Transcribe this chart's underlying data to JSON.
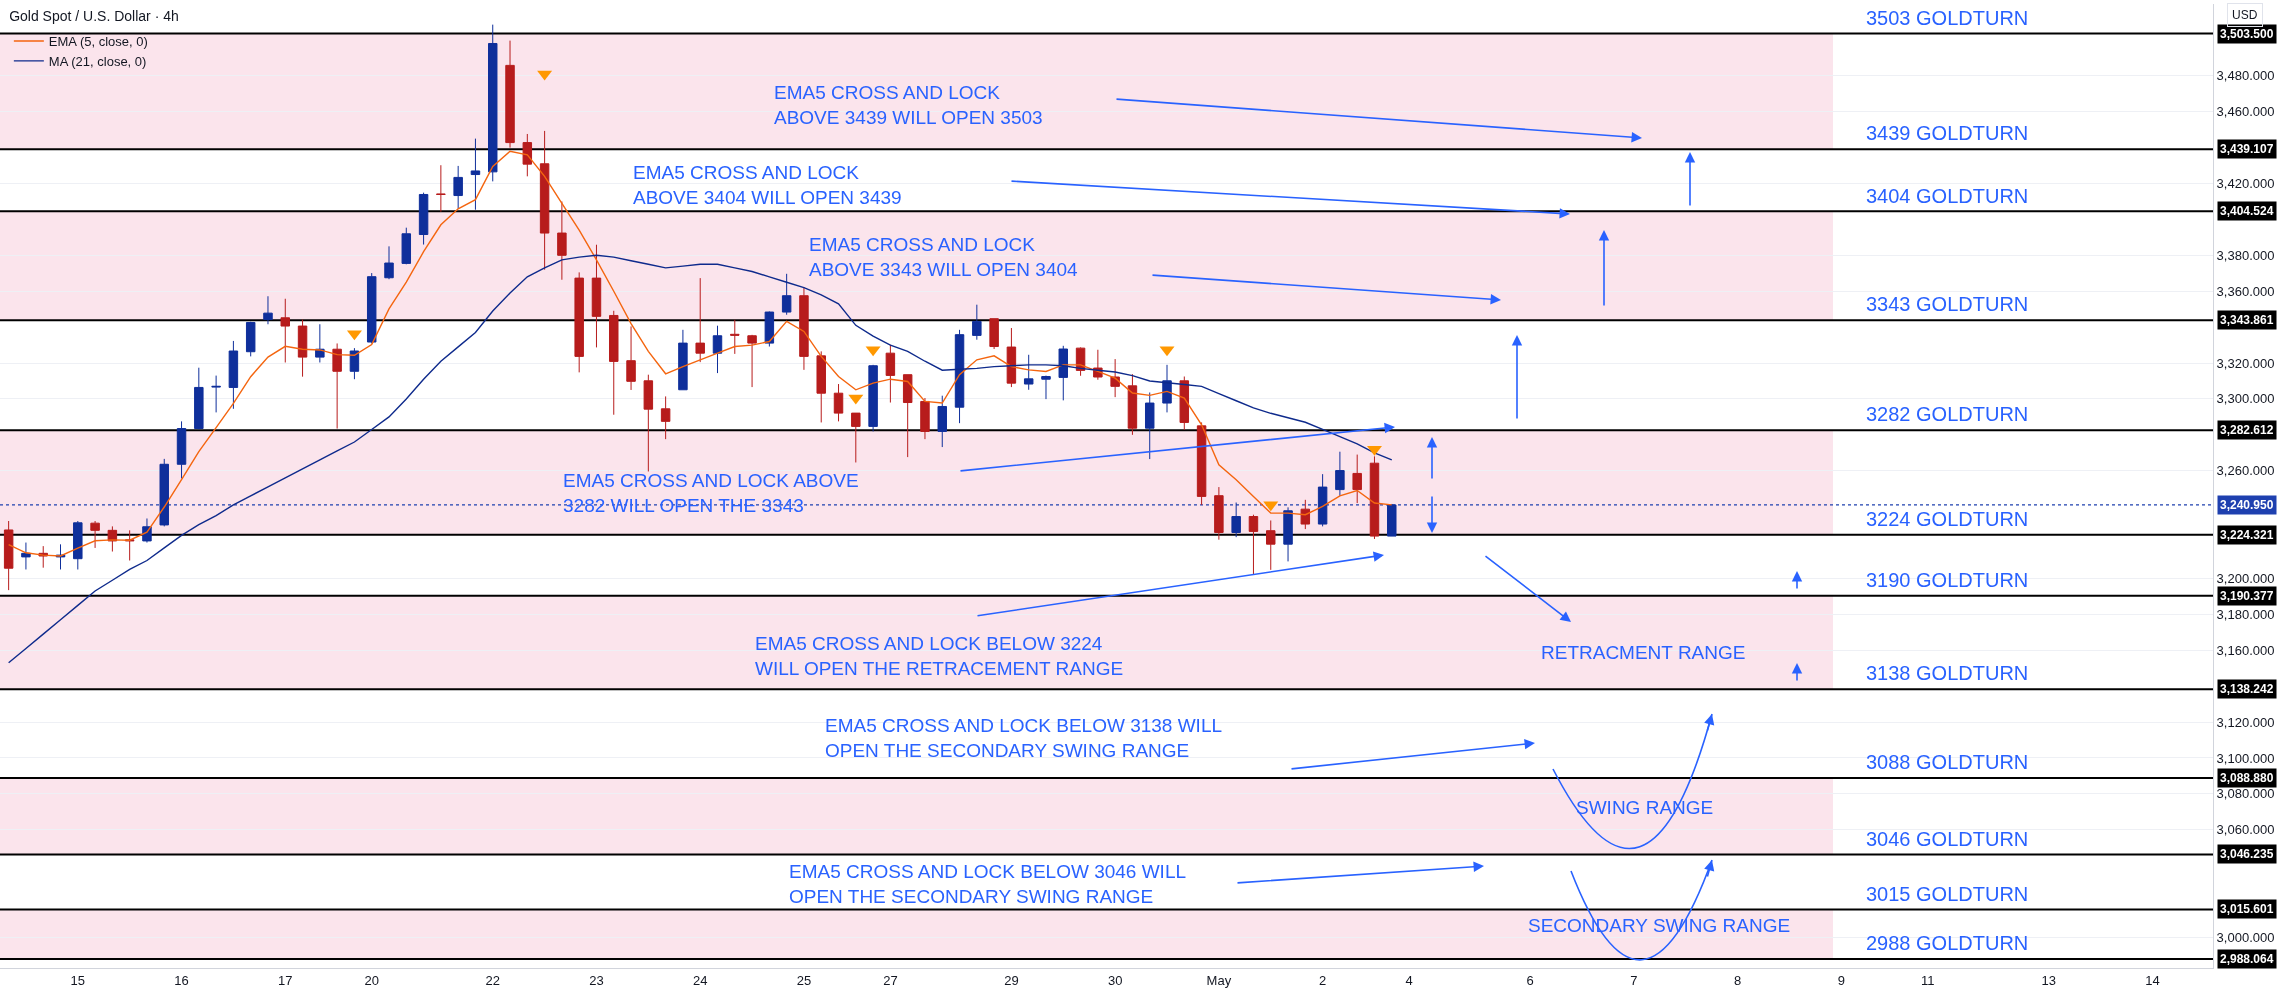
{
  "chart_data": {
    "type": "candlestick",
    "title": "Gold Spot / U.S. Dollar · 4h",
    "categories": [
      null,
      null,
      null,
      null,
      "15",
      null,
      null,
      null,
      null,
      null,
      "16",
      null,
      null,
      null,
      null,
      null,
      "17",
      null,
      null,
      null,
      null,
      "20",
      null,
      null,
      null,
      null,
      null,
      null,
      "22",
      null,
      null,
      null,
      null,
      null,
      "23",
      null,
      null,
      null,
      null,
      null,
      "24",
      null,
      null,
      null,
      null,
      null,
      "25",
      null,
      null,
      null,
      null,
      "27",
      null,
      null,
      null,
      null,
      null,
      null,
      "29",
      null,
      null,
      null,
      null,
      null,
      "30",
      null,
      null,
      null,
      null,
      null,
      "May",
      null,
      null,
      null,
      null,
      null,
      "2",
      null,
      null,
      null,
      null,
      "4",
      null,
      null,
      null,
      null,
      null,
      null,
      "6",
      null,
      null,
      null,
      null,
      null,
      "7",
      null,
      null,
      null,
      null,
      null,
      "8",
      null,
      null,
      null,
      null,
      null,
      "9",
      null,
      null,
      null,
      null,
      "11",
      null,
      null,
      null,
      null,
      null,
      null,
      "13",
      null,
      null,
      null,
      null,
      null,
      "14",
      null,
      null,
      null
    ],
    "ohlc": [
      [
        3227,
        3232,
        3193.5,
        3205.7
      ],
      [
        3212,
        3220,
        3205,
        3214
      ],
      [
        3214,
        3218,
        3206,
        3212.5
      ],
      [
        3212,
        3219,
        3205,
        3213
      ],
      [
        3211,
        3232,
        3205,
        3231
      ],
      [
        3230.8,
        3232,
        3217,
        3226.8
      ],
      [
        3226.8,
        3229,
        3215,
        3220.9
      ],
      [
        3221.5,
        3226.8,
        3210,
        3221
      ],
      [
        3220.9,
        3233.4,
        3220,
        3228.8
      ],
      [
        3229.8,
        3266.6,
        3229,
        3263.6
      ],
      [
        3263.6,
        3287.5,
        3255.7,
        3283.5
      ],
      [
        3283.5,
        3317.4,
        3283,
        3306.4
      ],
      [
        3306.6,
        3313,
        3292.5,
        3307
      ],
      [
        3306.4,
        3332.3,
        3294.5,
        3326.7
      ],
      [
        3326.3,
        3343,
        3323.7,
        3342.6
      ],
      [
        3344.2,
        3357.2,
        3341.6,
        3347.8
      ],
      [
        3345.2,
        3355.8,
        3320.3,
        3340.6
      ],
      [
        3340.6,
        3344.2,
        3312.4,
        3323.3
      ],
      [
        3323.3,
        3341.6,
        3320.3,
        3327.7
      ],
      [
        3327.7,
        3330.9,
        3283.5,
        3315.4
      ],
      [
        3315.4,
        3328.3,
        3311,
        3326.7
      ],
      [
        3331.7,
        3370.1,
        3330.9,
        3368.1
      ],
      [
        3367.5,
        3385,
        3366.7,
        3375.7
      ],
      [
        3375.5,
        3395.4,
        3375,
        3392
      ],
      [
        3391.6,
        3414.9,
        3386,
        3413.9
      ],
      [
        3414.2,
        3430.2,
        3404.3,
        3413.9
      ],
      [
        3413.3,
        3429.8,
        3405.9,
        3423.4
      ],
      [
        3425,
        3445,
        3405.4,
        3427
      ],
      [
        3426.5,
        3508.5,
        3421.2,
        3498
      ],
      [
        3485.8,
        3499.6,
        3440,
        3442.8
      ],
      [
        3442.8,
        3447.6,
        3424,
        3430.8
      ],
      [
        3431,
        3449.3,
        3372,
        3392.4
      ],
      [
        3392.4,
        3410,
        3366.4,
        3380
      ],
      [
        3367.3,
        3370.5,
        3314.8,
        3323.7
      ],
      [
        3367.3,
        3385.9,
        3328.7,
        3346
      ],
      [
        3346.5,
        3349.1,
        3291.2,
        3320.9
      ],
      [
        3321.3,
        3340.4,
        3305,
        3309.8
      ],
      [
        3310.1,
        3313.5,
        3259.6,
        3294.3
      ],
      [
        3294.5,
        3301.4,
        3277.6,
        3287.5
      ],
      [
        3305.1,
        3338.5,
        3305.1,
        3331.1
      ],
      [
        3331.1,
        3367.3,
        3320.5,
        3325.5
      ],
      [
        3325.5,
        3340.8,
        3314.4,
        3335.2
      ],
      [
        3336,
        3344.1,
        3325.1,
        3335.5
      ],
      [
        3335.2,
        3335.7,
        3306.6,
        3331.1
      ],
      [
        3331.1,
        3348.7,
        3329.2,
        3348.4
      ],
      [
        3348.4,
        3369.7,
        3346.9,
        3357.5
      ],
      [
        3357.5,
        3362.3,
        3316.2,
        3323.7
      ],
      [
        3324,
        3326.5,
        3286.9,
        3303.2
      ],
      [
        3303.2,
        3308.3,
        3287.5,
        3292.1
      ],
      [
        3292.1,
        3292.1,
        3264.6,
        3284.7
      ],
      [
        3284.7,
        3319,
        3281.9,
        3318.5
      ],
      [
        3325.5,
        3330.2,
        3298,
        3313.1
      ],
      [
        3313.5,
        3313.5,
        3267.6,
        3298
      ],
      [
        3298.6,
        3300.5,
        3277.6,
        3281.9
      ],
      [
        3281.9,
        3301.8,
        3273.2,
        3295.8
      ],
      [
        3295.4,
        3338.5,
        3286.5,
        3335.8
      ],
      [
        3335.4,
        3352.5,
        3333,
        3343.2
      ],
      [
        3344.7,
        3344.7,
        3327.8,
        3329.2
      ],
      [
        3328.9,
        3339.5,
        3306.6,
        3308.8
      ],
      [
        3308.3,
        3324.6,
        3305.1,
        3311.2
      ],
      [
        3311,
        3313,
        3299.9,
        3312.5
      ],
      [
        3312,
        3329.6,
        3299.2,
        3327.8
      ],
      [
        3328.3,
        3328.7,
        3312.9,
        3315.9
      ],
      [
        3317.2,
        3327.4,
        3310.7,
        3312.2
      ],
      [
        3312.2,
        3322.2,
        3301,
        3307
      ],
      [
        3307.3,
        3313.8,
        3280,
        3283.7
      ],
      [
        3283.7,
        3303.6,
        3266.5,
        3297.7
      ],
      [
        3297.7,
        3319,
        3292.5,
        3310.1
      ],
      [
        3310.1,
        3312.5,
        3282.8,
        3286.9
      ],
      [
        3285,
        3286.9,
        3241,
        3245.7
      ],
      [
        3246.1,
        3250.9,
        3221.6,
        3225.6
      ],
      [
        3225.6,
        3242.3,
        3223,
        3234.5
      ],
      [
        3234.5,
        3235.5,
        3202,
        3226.2
      ],
      [
        3226.6,
        3232.3,
        3204.8,
        3219.1
      ],
      [
        3219.1,
        3239.6,
        3209.5,
        3237.7
      ],
      [
        3238.6,
        3243.8,
        3227.5,
        3230.3
      ],
      [
        3230.3,
        3258.1,
        3229,
        3250.9
      ],
      [
        3249.5,
        3270.6,
        3246,
        3260.1
      ],
      [
        3258.5,
        3269,
        3242,
        3249.5
      ],
      [
        3264.2,
        3268,
        3222,
        3223.6
      ],
      [
        3223.6,
        3241.5,
        3223.6,
        3240.95
      ],
      null,
      null,
      null,
      null,
      null,
      null,
      null,
      null,
      null,
      null,
      null,
      null,
      null,
      null,
      null,
      null,
      null,
      null,
      null,
      null,
      null,
      null,
      null,
      null,
      null,
      null,
      null,
      null,
      null,
      null,
      null,
      null,
      null,
      null,
      null,
      null,
      null,
      null,
      null,
      null,
      null,
      null,
      null,
      null,
      null,
      null,
      null
    ],
    "colors": [
      "#b71c1c",
      "#0f2f9b",
      "#b71c1c",
      "#0f2f9b",
      "#0f2f9b",
      "#b71c1c",
      "#b71c1c",
      "#b71c1c",
      "#0f2f9b",
      "#0f2f9b",
      "#0f2f9b",
      "#0f2f9b",
      "#0f2f9b",
      "#0f2f9b",
      "#0f2f9b",
      "#0f2f9b",
      "#b71c1c",
      "#b71c1c",
      "#0f2f9b",
      "#b71c1c",
      "#0f2f9b",
      "#0f2f9b",
      "#0f2f9b",
      "#0f2f9b",
      "#0f2f9b",
      "#b71c1c",
      "#0f2f9b",
      "#0f2f9b",
      "#0f2f9b",
      "#b71c1c",
      "#b71c1c",
      "#b71c1c",
      "#b71c1c",
      "#b71c1c",
      "#b71c1c",
      "#b71c1c",
      "#b71c1c",
      "#b71c1c",
      "#b71c1c",
      "#0f2f9b",
      "#b71c1c",
      "#0f2f9b",
      "#b71c1c",
      "#b71c1c",
      "#0f2f9b",
      "#0f2f9b",
      "#b71c1c",
      "#b71c1c",
      "#b71c1c",
      "#b71c1c",
      "#0f2f9b",
      "#b71c1c",
      "#b71c1c",
      "#b71c1c",
      "#0f2f9b",
      "#0f2f9b",
      "#0f2f9b",
      "#b71c1c",
      "#b71c1c",
      "#0f2f9b",
      "#0f2f9b",
      "#0f2f9b",
      "#b71c1c",
      "#b71c1c",
      "#b71c1c",
      "#b71c1c",
      "#0f2f9b",
      "#0f2f9b",
      "#b71c1c",
      "#b71c1c",
      "#b71c1c",
      "#0f2f9b",
      "#b71c1c",
      "#b71c1c",
      "#0f2f9b",
      "#b71c1c",
      "#0f2f9b",
      "#0f2f9b",
      "#b71c1c",
      "#b71c1c",
      "#0f2f9b",
      null,
      null,
      null,
      null,
      null,
      null,
      null,
      null,
      null,
      null,
      null,
      null,
      null,
      null,
      null,
      null,
      null,
      null,
      null,
      null,
      null,
      null,
      null,
      null,
      null,
      null,
      null,
      null,
      null,
      null,
      null,
      null,
      null,
      null,
      null,
      null,
      null,
      null,
      null,
      null,
      null,
      null,
      null,
      null,
      null,
      null,
      null
    ],
    "series": [
      {
        "name": "EMA (5, close, 0)",
        "type": "line",
        "color": "#f4650f",
        "values": [
          3218.9,
          3214.3,
          3213,
          3212.5,
          3216.9,
          3221,
          3221.5,
          3221.3,
          3225.8,
          3239.8,
          3255,
          3270.6,
          3284,
          3297.5,
          3312.4,
          3323.3,
          3329.3,
          3327.7,
          3327.3,
          3324.7,
          3324.3,
          3330.3,
          3350.2,
          3365.1,
          3382,
          3397,
          3405.9,
          3411,
          3429.5,
          3438,
          3436,
          3424,
          3409,
          3394,
          3377.5,
          3360,
          3342,
          3326.5,
          3314,
          3318,
          3321.8,
          3325.5,
          3329.2,
          3330,
          3332,
          3343.2,
          3337.6,
          3323.7,
          3312.5,
          3305.1,
          3308.8,
          3311,
          3309.7,
          3298.6,
          3297.7,
          3313.5,
          3321.8,
          3324,
          3318,
          3316.2,
          3315.3,
          3319,
          3319,
          3315.3,
          3311.6,
          3303.3,
          3302,
          3304.2,
          3300.5,
          3285.6,
          3263.3,
          3255,
          3245.7,
          3236.4,
          3236.4,
          3235.5,
          3240.1,
          3246,
          3249,
          3242,
          3241,
          null,
          null,
          null,
          null,
          null,
          null,
          null,
          null,
          null,
          null,
          null,
          null,
          null,
          null,
          null,
          null,
          null,
          null,
          null,
          null,
          null,
          null,
          null,
          null,
          null,
          null,
          null,
          null,
          null,
          null,
          null,
          null,
          null,
          null,
          null,
          null,
          null,
          null,
          null,
          null,
          null,
          null,
          null,
          null,
          null,
          null,
          null
        ]
      },
      {
        "name": "MA (21, close, 0)",
        "type": "line",
        "color": "#0e2a8c",
        "values": [
          3153,
          3161,
          3169,
          3177,
          3185,
          3193,
          3199,
          3205,
          3210,
          3217,
          3224,
          3230,
          3235,
          3241,
          3246,
          3251,
          3256,
          3261,
          3266,
          3271,
          3276,
          3283,
          3290,
          3300,
          3311,
          3321,
          3329,
          3337,
          3349,
          3359,
          3368,
          3373,
          3377.5,
          3379,
          3380,
          3379,
          3377,
          3375,
          3373,
          3374,
          3375,
          3375,
          3373,
          3371,
          3368,
          3365,
          3362,
          3358,
          3353,
          3341,
          3335,
          3330,
          3326.5,
          3321,
          3316,
          3316.5,
          3317,
          3318,
          3318.5,
          3319,
          3319,
          3318.5,
          3317,
          3316,
          3315,
          3313,
          3310,
          3309,
          3308,
          3307,
          3303,
          3299,
          3295,
          3292,
          3289.5,
          3287,
          3283,
          3279,
          3275,
          3270,
          3266,
          null,
          null,
          null,
          null,
          null,
          null,
          null,
          null,
          null,
          null,
          null,
          null,
          null,
          null,
          null,
          null,
          null,
          null,
          null,
          null,
          null,
          null,
          null,
          null,
          null,
          null,
          null,
          null,
          null,
          null,
          null,
          null,
          null,
          null,
          null,
          null,
          null,
          null,
          null,
          null,
          null,
          null,
          null,
          null,
          null,
          null,
          null
        ]
      },
      {
        "type": "scatter",
        "marker": "triangle",
        "color": "#ff9800",
        "values": [
          null,
          null,
          null,
          null,
          null,
          null,
          null,
          null,
          null,
          null,
          null,
          null,
          null,
          null,
          null,
          null,
          null,
          null,
          null,
          null,
          3336.3,
          null,
          null,
          null,
          null,
          null,
          null,
          null,
          null,
          null,
          null,
          3481,
          null,
          null,
          null,
          null,
          null,
          null,
          null,
          null,
          null,
          null,
          null,
          null,
          null,
          null,
          null,
          null,
          null,
          3300.5,
          3327.4,
          null,
          null,
          null,
          null,
          null,
          null,
          null,
          null,
          null,
          null,
          null,
          null,
          null,
          null,
          null,
          null,
          3327.4,
          null,
          null,
          null,
          null,
          null,
          3241,
          null,
          null,
          null,
          null,
          null,
          3272,
          null,
          null,
          null,
          null,
          null,
          null,
          null,
          null,
          null,
          null,
          null,
          null,
          null,
          null,
          null,
          null,
          null,
          null,
          null,
          null,
          null,
          null,
          null,
          null,
          null,
          null,
          null,
          null,
          null,
          null,
          null,
          null,
          null,
          null,
          null,
          null,
          null,
          null,
          null,
          null,
          null,
          null,
          null,
          null,
          null,
          null,
          null,
          null
        ]
      }
    ],
    "ylim": [
      2983,
      3520
    ],
    "yticks": [
      {
        "value": 3000,
        "label": "3,000.000"
      },
      {
        "value": 3060,
        "label": "3,060.000"
      },
      {
        "value": 3080,
        "label": "3,080.000"
      },
      {
        "value": 3100,
        "label": "3,100.000"
      },
      {
        "value": 3120,
        "label": "3,120.000"
      },
      {
        "value": 3160,
        "label": "3,160.000"
      },
      {
        "value": 3180,
        "label": "3,180.000"
      },
      {
        "value": 3200,
        "label": "3,200.000"
      },
      {
        "value": 3260,
        "label": "3,260.000"
      },
      {
        "value": 3300,
        "label": "3,300.000"
      },
      {
        "value": 3320,
        "label": "3,320.000"
      },
      {
        "value": 3360,
        "label": "3,360.000"
      },
      {
        "value": 3380,
        "label": "3,380.000"
      },
      {
        "value": 3420,
        "label": "3,420.000"
      },
      {
        "value": 3460,
        "label": "3,460.000"
      },
      {
        "value": 3480,
        "label": "3,480.000"
      }
    ],
    "grid": "y",
    "legend": "top left",
    "ref_lines": [
      {
        "axis": "y",
        "value": 3503.5,
        "label": "3,503.500",
        "color": "#000000"
      },
      {
        "axis": "y",
        "value": 3439.107,
        "label": "3,439.107",
        "color": "#000000"
      },
      {
        "axis": "y",
        "value": 3404.524,
        "label": "3,404.524",
        "color": "#000000"
      },
      {
        "axis": "y",
        "value": 3343.861,
        "label": "3,343.861",
        "color": "#000000"
      },
      {
        "axis": "y",
        "value": 3282.612,
        "label": "3,282.612",
        "color": "#000000"
      },
      {
        "axis": "y",
        "value": 3240.95,
        "label": "3,240.950",
        "color": "#1e40af",
        "line_style": "dotted"
      },
      {
        "axis": "y",
        "value": 3224.321,
        "label": "3,224.321",
        "color": "#000000"
      },
      {
        "axis": "y",
        "value": 3190.377,
        "label": "3,190.377",
        "color": "#000000"
      },
      {
        "axis": "y",
        "value": 3138.242,
        "label": "3,138.242",
        "color": "#000000"
      },
      {
        "axis": "y",
        "value": 3088.88,
        "label": "3,088.880",
        "color": "#000000"
      },
      {
        "axis": "y",
        "value": 3046.235,
        "label": "3,046.235",
        "color": "#000000"
      },
      {
        "axis": "y",
        "value": 3015.601,
        "label": "3,015.601",
        "color": "#000000"
      },
      {
        "axis": "y",
        "value": 2988.064,
        "label": "2,988.064",
        "color": "#000000"
      }
    ],
    "bands": [
      {
        "axis": "y",
        "from": 3439.107,
        "to": 3503.5,
        "color": "#fbe4ec"
      },
      {
        "axis": "y",
        "from": 3343.861,
        "to": 3404.524,
        "color": "#fbe4ec"
      },
      {
        "axis": "y",
        "from": 3224.321,
        "to": 3282.612,
        "color": "#fbe4ec"
      },
      {
        "axis": "y",
        "from": 3138.242,
        "to": 3190.377,
        "color": "#fbe4ec"
      },
      {
        "axis": "y",
        "from": 3046.235,
        "to": 3088.88,
        "color": "#fbe4ec"
      },
      {
        "axis": "y",
        "from": 2988.064,
        "to": 3015.601,
        "color": "#fbe4ec"
      }
    ],
    "annotations": [
      "EMA5 CROSS AND LOCK\nABOVE 3439 WILL OPEN 3503",
      "EMA5 CROSS AND LOCK\nABOVE 3404 WILL OPEN 3439",
      "EMA5 CROSS AND LOCK\nABOVE 3343 WILL OPEN 3404",
      "EMA5 CROSS AND LOCK ABOVE\n3282 WILL OPEN THE 3343",
      "EMA5 CROSS AND LOCK BELOW 3224\nWILL OPEN THE RETRACEMENT RANGE",
      "RETRACMENT RANGE",
      "EMA5 CROSS AND LOCK BELOW 3138 WILL\nOPEN THE SECONDARY SWING RANGE",
      "SWING RANGE",
      "EMA5 CROSS AND LOCK BELOW 3046 WILL\nOPEN THE SECONDARY SWING RANGE",
      "SECONDARY SWING RANGE",
      "USD",
      "3503 GOLDTURN",
      "3439 GOLDTURN",
      "3404 GOLDTURN",
      "3343 GOLDTURN",
      "3282 GOLDTURN",
      "3224 GOLDTURN",
      "3190 GOLDTURN",
      "3138 GOLDTURN",
      "3088 GOLDTURN",
      "3046 GOLDTURN",
      "3015 GOLDTURN",
      "2988 GOLDTURN"
    ]
  }
}
